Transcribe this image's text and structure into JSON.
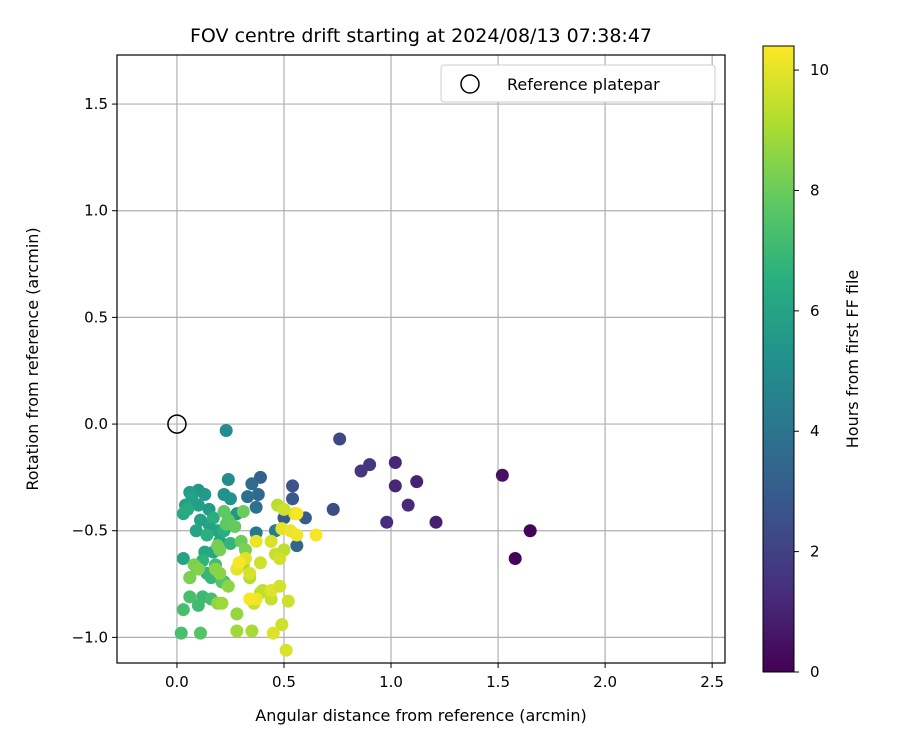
{
  "chart_data": {
    "type": "scatter",
    "title": "FOV centre drift starting at 2024/08/13 07:38:47",
    "xlabel": "Angular distance from reference (arcmin)",
    "ylabel": "Rotation from reference (arcmin)",
    "xlim": [
      -0.28,
      2.56
    ],
    "ylim": [
      -1.12,
      1.73
    ],
    "xticks": [
      0.0,
      0.5,
      1.0,
      1.5,
      2.0,
      2.5
    ],
    "xtick_labels": [
      "0.0",
      "0.5",
      "1.0",
      "1.5",
      "2.0",
      "2.5"
    ],
    "yticks": [
      -1.0,
      -0.5,
      0.0,
      0.5,
      1.0,
      1.5
    ],
    "ytick_labels": [
      "−1.0",
      "−0.5",
      "0.0",
      "0.5",
      "1.0",
      "1.5"
    ],
    "grid": true,
    "legend": {
      "label": "Reference platepar",
      "position": "top-right",
      "marker": "open-circle"
    },
    "reference_point": [
      0.0,
      0.0
    ],
    "colorbar": {
      "label": "Hours from first FF file",
      "colormap": "viridis",
      "range": [
        0,
        10.4
      ],
      "ticks": [
        0,
        2,
        4,
        6,
        8,
        10
      ],
      "tick_labels": [
        "0",
        "2",
        "4",
        "6",
        "8",
        "10"
      ]
    },
    "points": [
      [
        1.65,
        -0.5,
        0.1
      ],
      [
        1.58,
        -0.63,
        0.1
      ],
      [
        1.52,
        -0.24,
        0.5
      ],
      [
        1.21,
        -0.46,
        0.9
      ],
      [
        1.12,
        -0.27,
        1.0
      ],
      [
        1.08,
        -0.38,
        1.2
      ],
      [
        1.02,
        -0.29,
        1.1
      ],
      [
        1.02,
        -0.18,
        1.1
      ],
      [
        0.98,
        -0.46,
        1.3
      ],
      [
        0.9,
        -0.19,
        1.6
      ],
      [
        0.86,
        -0.22,
        1.6
      ],
      [
        0.76,
        -0.07,
        2.2
      ],
      [
        0.73,
        -0.4,
        2.4
      ],
      [
        0.6,
        -0.44,
        3.0
      ],
      [
        0.56,
        -0.57,
        3.4
      ],
      [
        0.54,
        -0.29,
        2.6
      ],
      [
        0.54,
        -0.35,
        2.9
      ],
      [
        0.5,
        -0.44,
        3.0
      ],
      [
        0.39,
        -0.25,
        3.2
      ],
      [
        0.38,
        -0.33,
        3.5
      ],
      [
        0.35,
        -0.28,
        3.6
      ],
      [
        0.33,
        -0.34,
        3.8
      ],
      [
        0.37,
        -0.39,
        3.9
      ],
      [
        0.37,
        -0.51,
        4.2
      ],
      [
        0.46,
        -0.5,
        4.3
      ],
      [
        0.23,
        -0.03,
        5.0
      ],
      [
        0.24,
        -0.26,
        5.0
      ],
      [
        0.22,
        -0.33,
        5.2
      ],
      [
        0.25,
        -0.35,
        5.3
      ],
      [
        0.28,
        -0.42,
        5.4
      ],
      [
        0.1,
        -0.31,
        5.5
      ],
      [
        0.13,
        -0.33,
        5.6
      ],
      [
        0.06,
        -0.32,
        5.7
      ],
      [
        0.04,
        -0.38,
        5.8
      ],
      [
        0.07,
        -0.35,
        5.9
      ],
      [
        0.1,
        -0.38,
        5.8
      ],
      [
        0.15,
        -0.4,
        5.7
      ],
      [
        0.11,
        -0.45,
        5.9
      ],
      [
        0.15,
        -0.47,
        5.9
      ],
      [
        0.09,
        -0.5,
        6.0
      ],
      [
        0.19,
        -0.5,
        6.1
      ],
      [
        0.2,
        -0.55,
        6.1
      ],
      [
        0.17,
        -0.6,
        6.2
      ],
      [
        0.13,
        -0.6,
        6.2
      ],
      [
        0.03,
        -0.63,
        6.0
      ],
      [
        0.03,
        -0.42,
        6.3
      ],
      [
        0.05,
        -0.4,
        6.4
      ],
      [
        0.17,
        -0.44,
        6.5
      ],
      [
        0.22,
        -0.5,
        6.5
      ],
      [
        0.14,
        -0.52,
        6.6
      ],
      [
        0.25,
        -0.56,
        6.8
      ],
      [
        0.12,
        -0.64,
        6.7
      ],
      [
        0.09,
        -0.67,
        6.8
      ],
      [
        0.14,
        -0.7,
        6.8
      ],
      [
        0.06,
        -0.72,
        7.0
      ],
      [
        0.16,
        -0.72,
        6.9
      ],
      [
        0.22,
        -0.74,
        7.0
      ],
      [
        0.18,
        -0.66,
        7.1
      ],
      [
        0.12,
        -0.81,
        7.0
      ],
      [
        0.16,
        -0.82,
        7.2
      ],
      [
        0.1,
        -0.85,
        7.1
      ],
      [
        0.06,
        -0.81,
        7.3
      ],
      [
        0.03,
        -0.87,
        7.3
      ],
      [
        0.02,
        -0.98,
        7.3
      ],
      [
        0.11,
        -0.98,
        7.5
      ],
      [
        0.21,
        -0.74,
        7.6
      ],
      [
        0.24,
        -0.45,
        7.8
      ],
      [
        0.23,
        -0.47,
        7.8
      ],
      [
        0.27,
        -0.48,
        7.9
      ],
      [
        0.22,
        -0.41,
        7.8
      ],
      [
        0.31,
        -0.41,
        8.0
      ],
      [
        0.3,
        -0.55,
        8.0
      ],
      [
        0.19,
        -0.57,
        8.2
      ],
      [
        0.2,
        -0.59,
        8.2
      ],
      [
        0.32,
        -0.59,
        8.3
      ],
      [
        0.08,
        -0.66,
        8.3
      ],
      [
        0.1,
        -0.68,
        8.4
      ],
      [
        0.06,
        -0.72,
        8.3
      ],
      [
        0.18,
        -0.68,
        8.5
      ],
      [
        0.2,
        -0.7,
        8.5
      ],
      [
        0.24,
        -0.76,
        8.6
      ],
      [
        0.19,
        -0.84,
        8.6
      ],
      [
        0.21,
        -0.84,
        8.8
      ],
      [
        0.28,
        -0.89,
        8.7
      ],
      [
        0.28,
        -0.97,
        8.9
      ],
      [
        0.35,
        -0.97,
        9.0
      ],
      [
        0.31,
        -0.66,
        9.1
      ],
      [
        0.34,
        -0.72,
        9.2
      ],
      [
        0.39,
        -0.79,
        9.3
      ],
      [
        0.36,
        -0.84,
        9.4
      ],
      [
        0.4,
        -0.78,
        9.4
      ],
      [
        0.44,
        -0.82,
        9.5
      ],
      [
        0.49,
        -0.94,
        9.6
      ],
      [
        0.52,
        -0.83,
        9.6
      ],
      [
        0.51,
        -1.06,
        9.8
      ],
      [
        0.45,
        -0.98,
        9.9
      ],
      [
        0.44,
        -0.78,
        9.9
      ],
      [
        0.48,
        -0.76,
        9.7
      ],
      [
        0.46,
        -0.61,
        9.5
      ],
      [
        0.5,
        -0.59,
        9.4
      ],
      [
        0.48,
        -0.63,
        9.7
      ],
      [
        0.44,
        -0.55,
        9.8
      ],
      [
        0.39,
        -0.65,
        9.6
      ],
      [
        0.34,
        -0.7,
        9.8
      ],
      [
        0.32,
        -0.63,
        9.9
      ],
      [
        0.28,
        -0.68,
        10.0
      ],
      [
        0.37,
        -0.55,
        10.1
      ],
      [
        0.37,
        -0.82,
        10.2
      ],
      [
        0.47,
        -0.38,
        9.3
      ],
      [
        0.5,
        -0.4,
        9.6
      ],
      [
        0.55,
        -0.42,
        9.9
      ],
      [
        0.49,
        -0.49,
        10.0
      ],
      [
        0.53,
        -0.5,
        10.1
      ],
      [
        0.56,
        -0.52,
        10.2
      ],
      [
        0.56,
        -0.42,
        10.3
      ],
      [
        0.65,
        -0.52,
        10.3
      ],
      [
        0.34,
        -0.82,
        10.3
      ],
      [
        0.29,
        -0.65,
        10.3
      ]
    ]
  }
}
